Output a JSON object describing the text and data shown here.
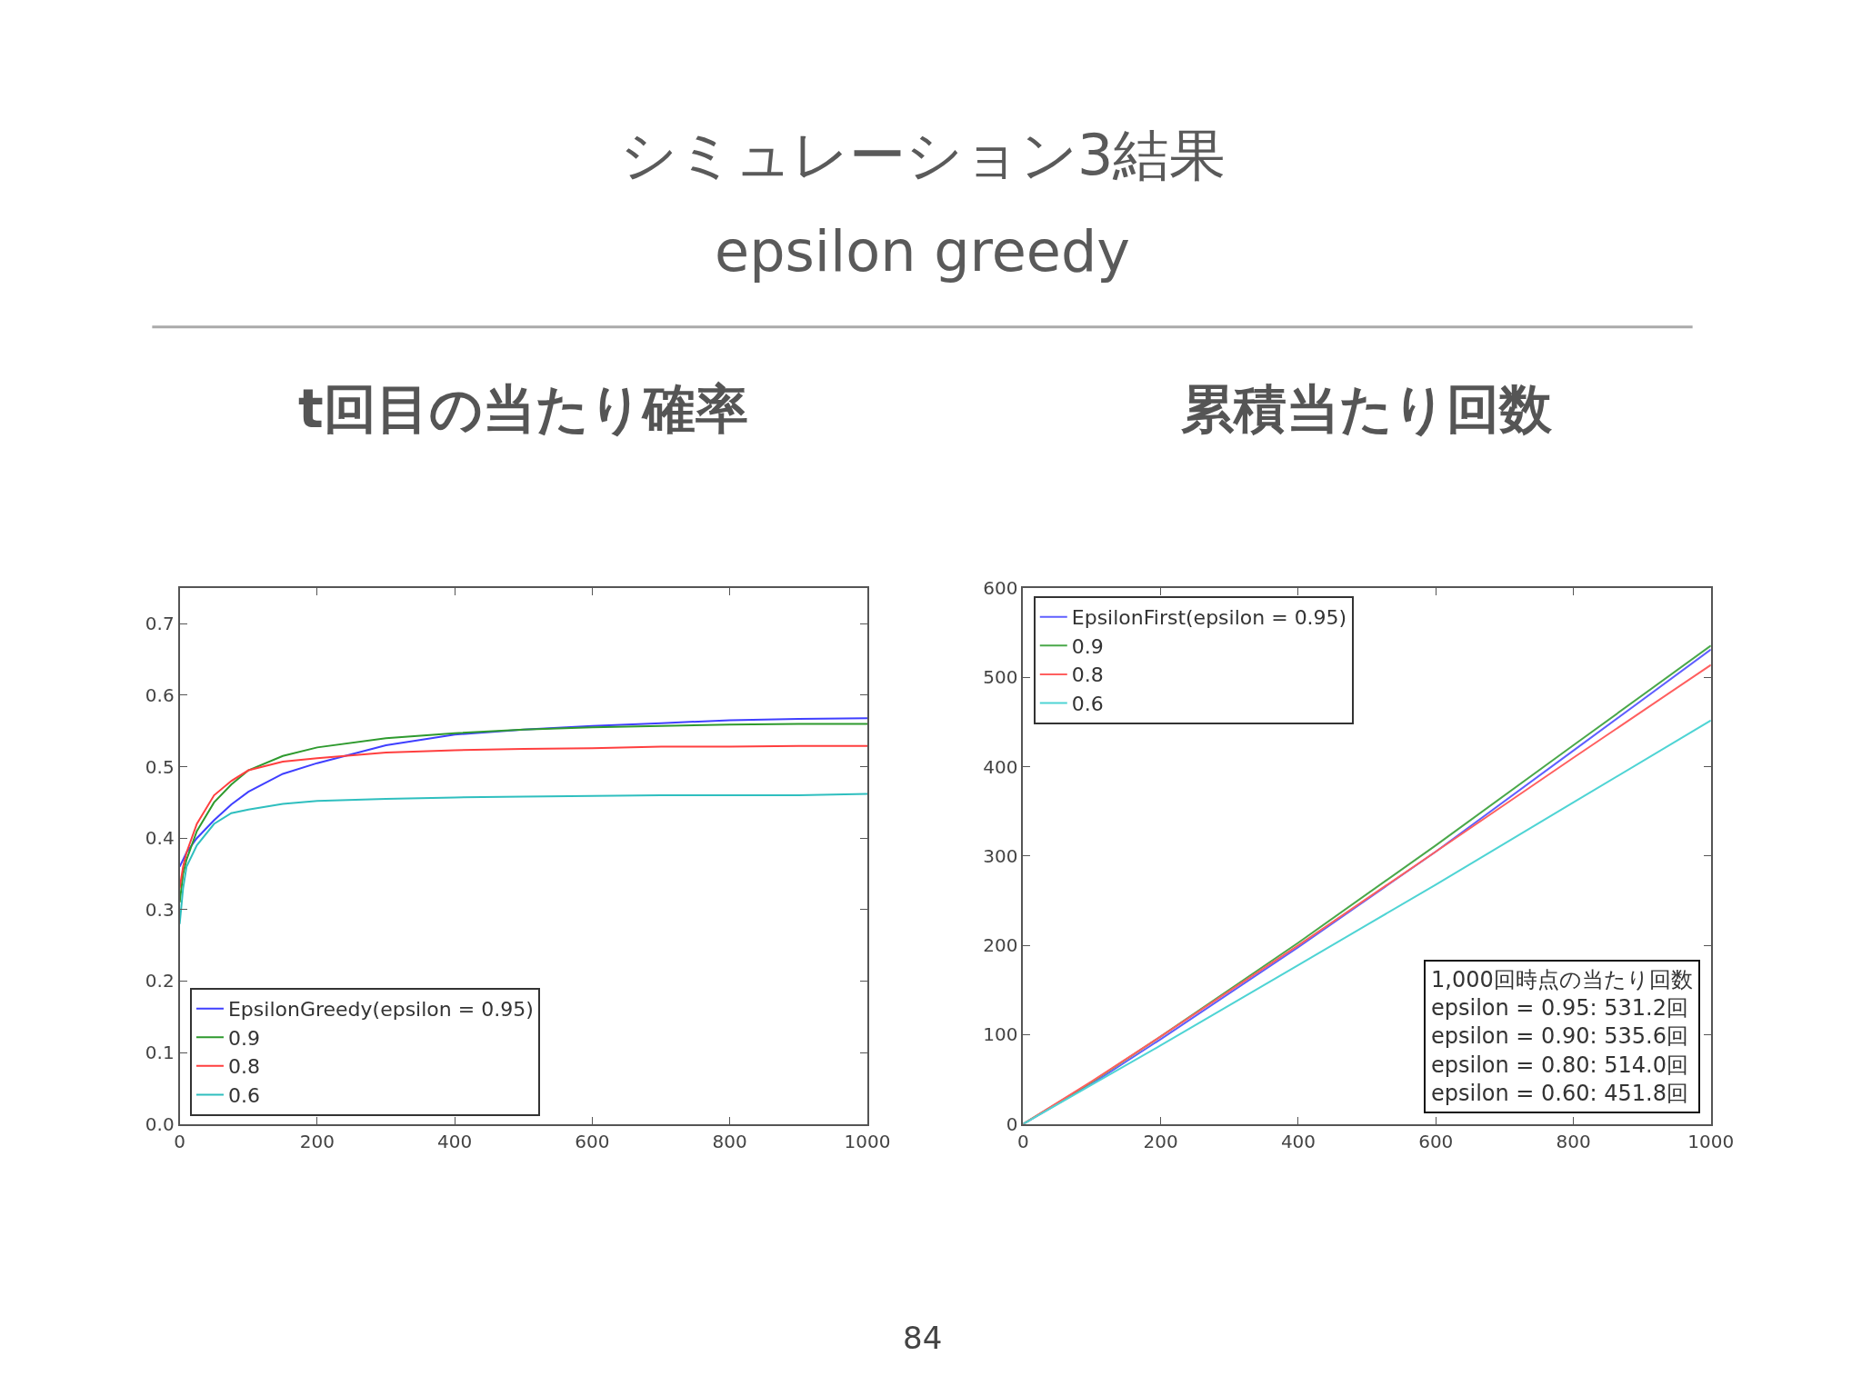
{
  "chart_data": [
    {
      "type": "line",
      "title": "t回目の当たり確率",
      "annotations": [
        "シミュレーション3結果",
        "epsilon greedy"
      ],
      "x": [
        0,
        5,
        10,
        25,
        50,
        75,
        100,
        150,
        200,
        300,
        400,
        500,
        600,
        700,
        800,
        900,
        1000
      ],
      "series": [
        {
          "name": "EpsilonGreedy(epsilon = 0.95)",
          "color": "#3f3fff",
          "values": [
            0.36,
            0.37,
            0.38,
            0.4,
            0.425,
            0.447,
            0.465,
            0.49,
            0.505,
            0.53,
            0.545,
            0.552,
            0.557,
            0.561,
            0.565,
            0.567,
            0.568
          ]
        },
        {
          "name": "0.9",
          "color": "#2e9a2e",
          "values": [
            0.31,
            0.35,
            0.37,
            0.41,
            0.45,
            0.475,
            0.495,
            0.515,
            0.527,
            0.54,
            0.547,
            0.552,
            0.555,
            0.557,
            0.559,
            0.56,
            0.56
          ]
        },
        {
          "name": "0.8",
          "color": "#ff3f3f",
          "values": [
            0.33,
            0.36,
            0.38,
            0.42,
            0.46,
            0.48,
            0.495,
            0.507,
            0.512,
            0.52,
            0.523,
            0.525,
            0.526,
            0.528,
            0.528,
            0.529,
            0.529
          ]
        },
        {
          "name": "0.6",
          "color": "#2fbfbf",
          "values": [
            0.28,
            0.33,
            0.36,
            0.39,
            0.42,
            0.435,
            0.44,
            0.448,
            0.452,
            0.455,
            0.457,
            0.458,
            0.459,
            0.46,
            0.46,
            0.46,
            0.462
          ]
        }
      ],
      "xlim": [
        0,
        1000
      ],
      "xticks": [
        0,
        200,
        400,
        600,
        800,
        1000
      ],
      "ylim": [
        0,
        0.75
      ],
      "yticks": [
        {
          "value": 0,
          "label": "0.0"
        },
        0.1,
        0.2,
        0.3,
        0.4,
        0.5,
        0.6,
        0.7
      ],
      "legend": "bottom left",
      "marker": "none",
      "line_style": "solid"
    },
    {
      "type": "line",
      "title": "累積当たり回数",
      "annotations": [
        "1,000回時点の当たり回数\nepsilon = 0.95: 531.2回\nepsilon = 0.90: 535.6回\nepsilon = 0.80: 514.0回\nepsilon = 0.60: 451.8回",
        "84"
      ],
      "x": [
        0,
        100,
        200,
        400,
        600,
        800,
        1000
      ],
      "series": [
        {
          "name": "EpsilonFirst(epsilon = 0.95)",
          "color": "#5f5fff",
          "values": [
            0,
            45,
            95,
            198,
            305,
            418,
            531.2
          ]
        },
        {
          "name": "0.9",
          "color": "#4aa84a",
          "values": [
            0,
            47,
            98,
            203,
            312,
            424,
            535.6
          ]
        },
        {
          "name": "0.8",
          "color": "#ff5f5f",
          "values": [
            0,
            48,
            98,
            200,
            305,
            410,
            514.0
          ]
        },
        {
          "name": "0.6",
          "color": "#4fd4d4",
          "values": [
            0,
            44,
            88,
            178,
            268,
            360,
            451.8
          ]
        }
      ],
      "xlim": [
        0,
        1000
      ],
      "xticks": [
        0,
        200,
        400,
        600,
        800,
        1000
      ],
      "ylim": [
        0,
        600
      ],
      "yticks": [
        0,
        100,
        200,
        300,
        400,
        500,
        600
      ],
      "legend": "top left",
      "marker": "none",
      "line_style": "solid"
    }
  ]
}
